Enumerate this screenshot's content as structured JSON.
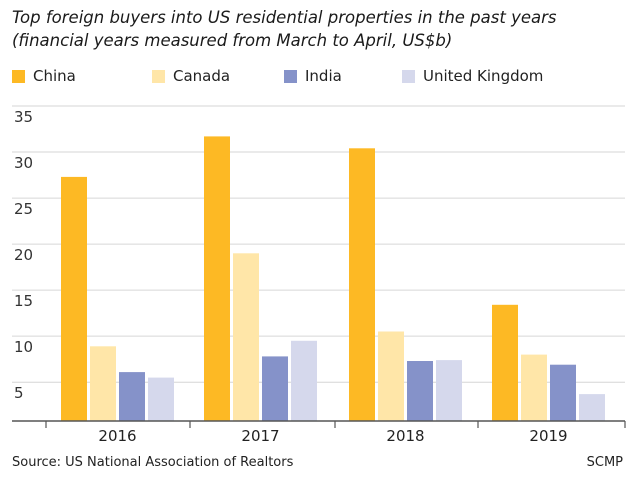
{
  "title_line1": "Top foreign buyers into US residential properties in the past years",
  "title_line2": "(financial years measured from March to April, US$b)",
  "source": "Source: US National Association of Realtors",
  "credit": "SCMP",
  "chart_data": {
    "type": "bar",
    "categories": [
      "2016",
      "2017",
      "2018",
      "2019"
    ],
    "series": [
      {
        "name": "China",
        "color": "#FDB924",
        "values": [
          27.3,
          31.7,
          30.4,
          13.4
        ]
      },
      {
        "name": "Canada",
        "color": "#FFE6A8",
        "values": [
          8.9,
          19.0,
          10.5,
          8.0
        ]
      },
      {
        "name": "India",
        "color": "#8592C9",
        "values": [
          6.1,
          7.8,
          7.3,
          6.9
        ]
      },
      {
        "name": "United Kingdom",
        "color": "#D5D8EC",
        "values": [
          5.5,
          9.5,
          7.4,
          3.7
        ]
      }
    ],
    "yticks": [
      "5",
      "10",
      "15",
      "20",
      "25",
      "30",
      "35"
    ],
    "ylim": [
      0,
      35
    ],
    "grid": true,
    "legend_position": "top"
  }
}
